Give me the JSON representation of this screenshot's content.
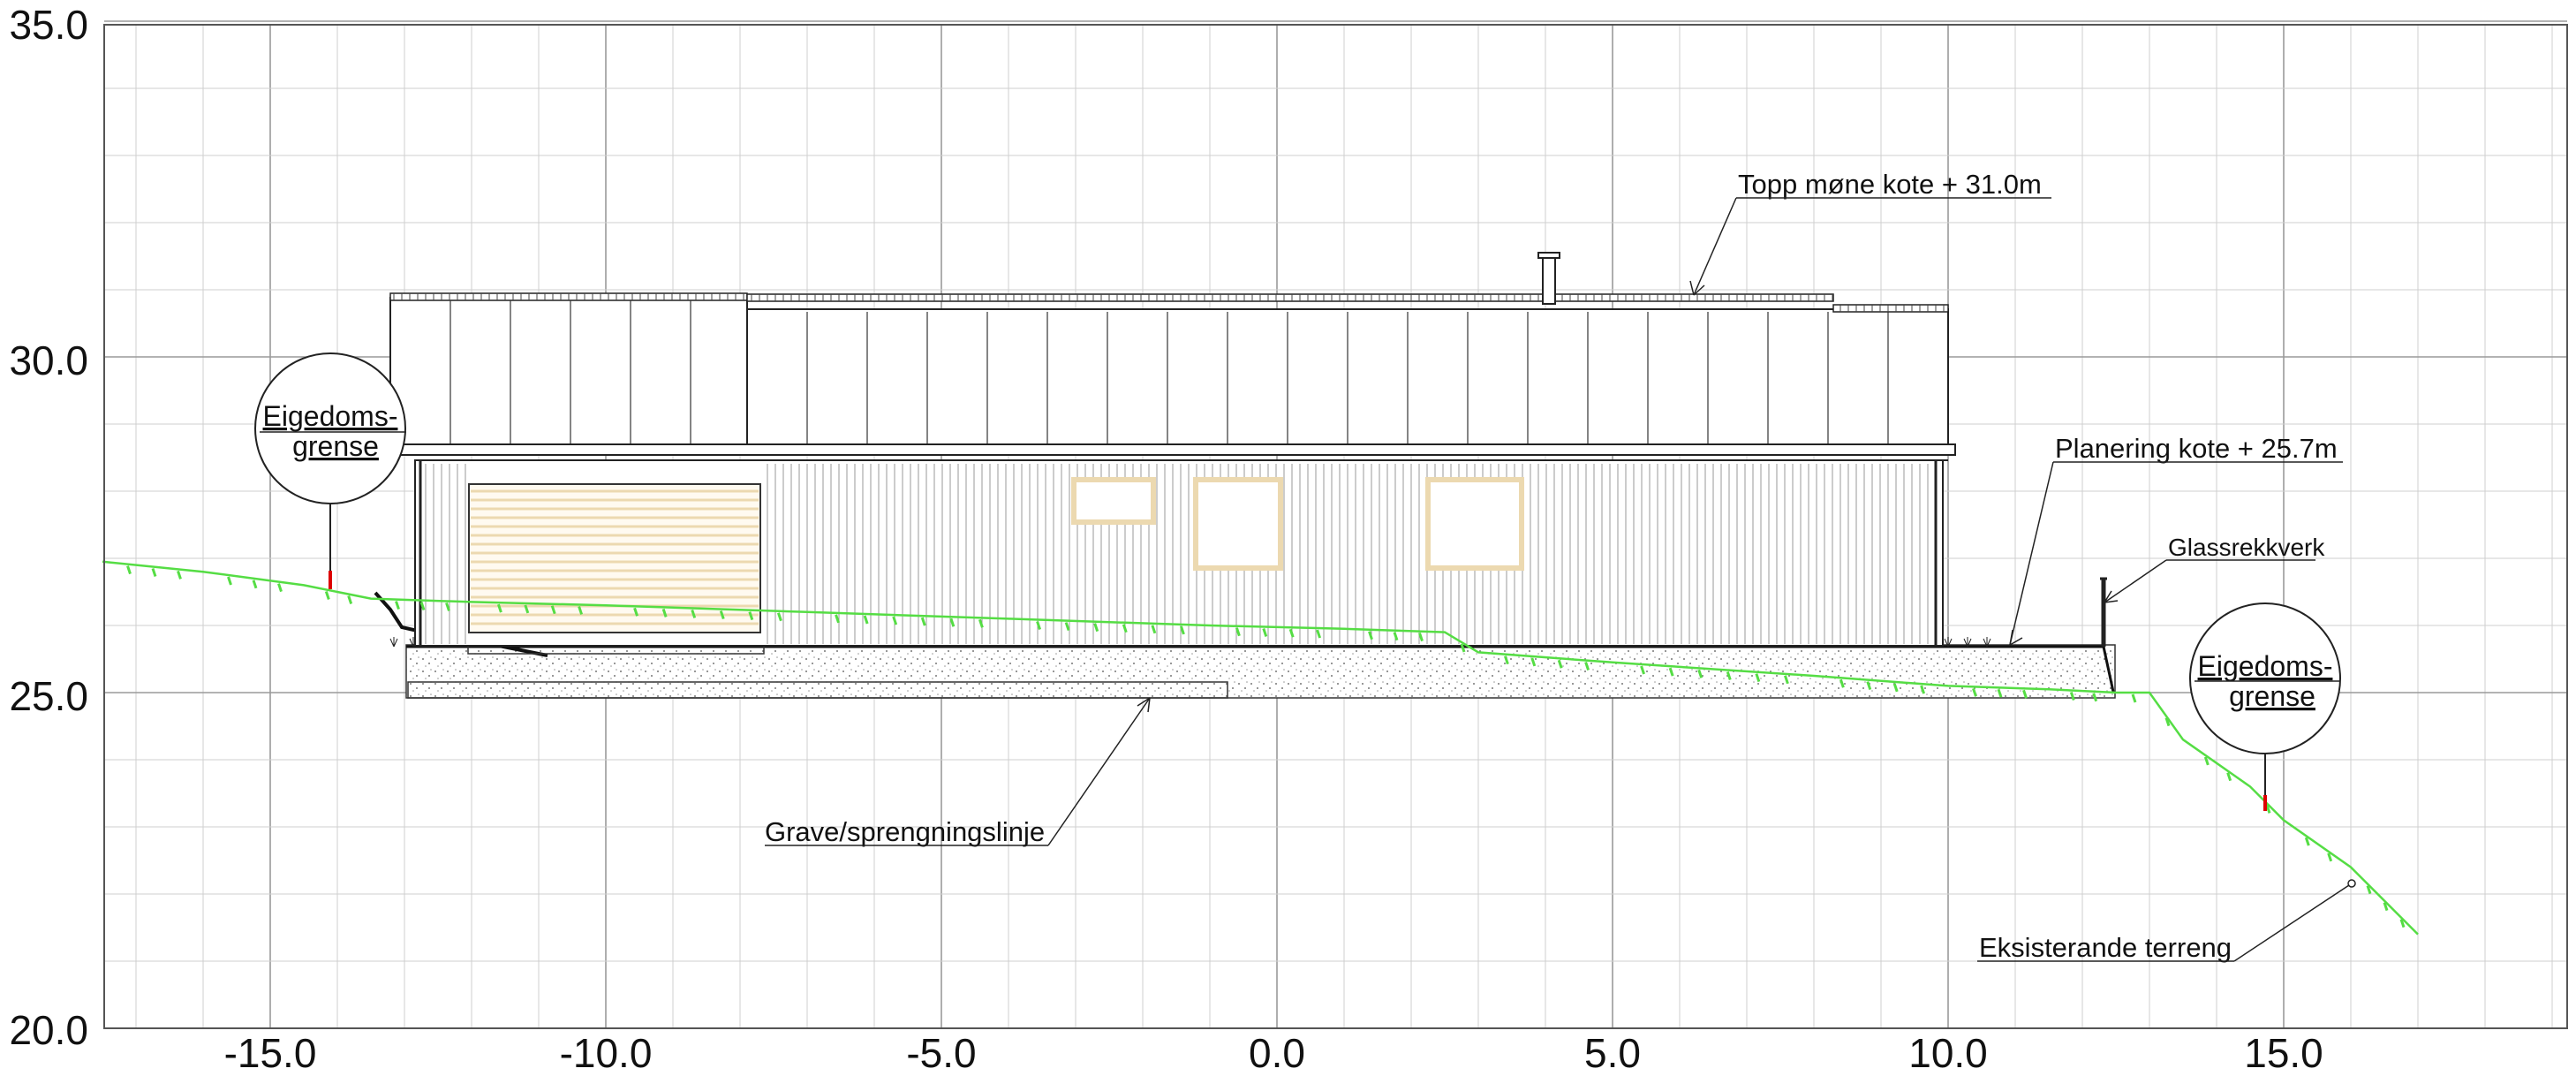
{
  "axes": {
    "x_ticks": [
      "-15.0",
      "-10.0",
      "-5.0",
      "0.0",
      "5.0",
      "10.0",
      "15.0"
    ],
    "y_ticks": [
      "35.0",
      "30.0",
      "25.0",
      "20.0"
    ]
  },
  "annotations": {
    "ridge": "Topp møne kote + 31.0m",
    "planering": "Planering kote + 25.7m",
    "glassrekkverk": "Glassrekkverk",
    "grave": "Grave/sprengningslinje",
    "terrain": "Eksisterande terreng"
  },
  "property_markers": {
    "left": {
      "line1": "Eigedoms-",
      "line2": "grense"
    },
    "right": {
      "line1": "Eigedoms-",
      "line2": "grense"
    }
  },
  "colors": {
    "terrain": "#55dd44",
    "grid": "#cfcfcf",
    "grid_major": "#9a9a9a",
    "ink": "#111111",
    "window_frame": "#ecd9b0",
    "marker": "#dd0000"
  },
  "chart_data": {
    "type": "line",
    "title": "",
    "xlabel": "",
    "ylabel": "",
    "xlim": [
      -17.5,
      19.2
    ],
    "ylim": [
      20.0,
      35.0
    ],
    "grid": true,
    "series": [
      {
        "x": [
          -17.5,
          -16.0,
          -14.5,
          -13.5,
          -12.0,
          -10.0,
          -7.0,
          -4.0,
          -1.0,
          1.0,
          2.5,
          3.0,
          5.0,
          8.0,
          10.0,
          11.5,
          12.5,
          13.0,
          13.5,
          14.5,
          15.0,
          16.0,
          17.0
        ],
        "y": [
          26.95,
          26.8,
          26.6,
          26.4,
          26.35,
          26.3,
          26.2,
          26.1,
          26.0,
          25.95,
          25.9,
          25.6,
          25.45,
          25.25,
          25.1,
          25.05,
          25.0,
          25.0,
          24.3,
          23.6,
          23.1,
          22.4,
          21.4
        ]
      }
    ]
  }
}
